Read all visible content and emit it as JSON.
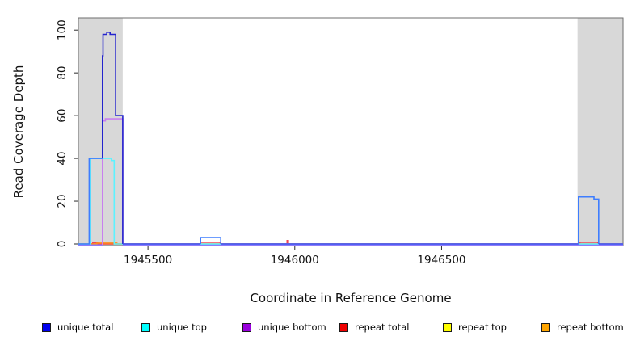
{
  "figure": {
    "background": "#ffffff",
    "shade_color": "#d8d8d8",
    "box_color": "#6e6e6e",
    "tick_color": "#2a2a2a",
    "text_color": "#111111"
  },
  "chart_data": {
    "type": "line",
    "title": "",
    "xlabel": "Coordinate in Reference Genome",
    "ylabel": "Read Coverage Depth",
    "xlim": [
      1945263,
      1947118
    ],
    "ylim": [
      0,
      100
    ],
    "xticks": [
      1945500,
      1946000,
      1946500
    ],
    "yticks": [
      0,
      20,
      40,
      60,
      80,
      100
    ],
    "grid": false,
    "legend_position": "bottom",
    "shaded_regions": [
      {
        "from": 1945263,
        "to": 1945414
      },
      {
        "from": 1946963,
        "to": 1947118
      }
    ],
    "series": [
      {
        "name": "repeat top",
        "color": "#f5f500",
        "dy": 0,
        "parts": [
          {
            "points": [
              [
                1945263,
                0
              ],
              [
                1947118,
                0
              ]
            ]
          }
        ]
      },
      {
        "name": "repeat total",
        "color": "#f04455",
        "dy": 0,
        "parts": [
          {
            "points": [
              [
                1945263,
                0
              ],
              [
                1945312,
                0
              ],
              [
                1945312,
                0.6
              ],
              [
                1945328,
                0.6
              ],
              [
                1945328,
                0
              ],
              [
                1945679,
                0
              ],
              [
                1945679,
                0.8
              ],
              [
                1945746,
                0.8
              ],
              [
                1945746,
                0
              ],
              [
                1945974,
                0
              ],
              [
                1945974,
                1.6
              ],
              [
                1945978,
                1.6
              ],
              [
                1945978,
                0
              ],
              [
                1946971,
                0
              ],
              [
                1946971,
                0.8
              ],
              [
                1947032,
                0.8
              ],
              [
                1947032,
                0
              ],
              [
                1947118,
                0
              ]
            ]
          }
        ]
      },
      {
        "name": "repeat bottom",
        "color": "#ff8c1a",
        "dy": 0,
        "parts": [
          {
            "points": [
              [
                1945263,
                0
              ],
              [
                1945326,
                0
              ],
              [
                1945326,
                0.4
              ],
              [
                1945394,
                0.4
              ],
              [
                1945394,
                0
              ],
              [
                1947118,
                0
              ]
            ]
          }
        ]
      },
      {
        "name": "unique bottom",
        "color": "#8f7bf8",
        "dy": 1.3,
        "parts": [
          {
            "points": [
              [
                1945263,
                0
              ],
              [
                1945345,
                0
              ]
            ]
          },
          {
            "color": "#c77fef",
            "points": [
              [
                1945345,
                0
              ],
              [
                1945345,
                58
              ],
              [
                1945355,
                58
              ],
              [
                1945355,
                59
              ],
              [
                1945414,
                59
              ],
              [
                1945414,
                0
              ]
            ]
          },
          {
            "points": [
              [
                1945414,
                0
              ],
              [
                1947118,
                0
              ]
            ]
          }
        ]
      },
      {
        "name": "unique top",
        "color": "#5cf2ff",
        "dy": 0,
        "parts": [
          {
            "points": [
              [
                1945263,
                0
              ],
              [
                1945302,
                0
              ],
              [
                1945302,
                40
              ],
              [
                1945375,
                40
              ],
              [
                1945375,
                39
              ],
              [
                1945385,
                39
              ],
              [
                1945385,
                0
              ],
              [
                1947118,
                0
              ]
            ]
          }
        ]
      },
      {
        "name": "unique total",
        "color": "#4545f2",
        "dy": 0,
        "parts": [
          {
            "color": "#3e7dfe",
            "points": [
              [
                1945263,
                0
              ],
              [
                1945300,
                0
              ],
              [
                1945300,
                40
              ],
              [
                1945345,
                40
              ]
            ]
          },
          {
            "color": "#2424ce",
            "points": [
              [
                1945345,
                40
              ],
              [
                1945345,
                88
              ],
              [
                1945347,
                88
              ],
              [
                1945347,
                98
              ],
              [
                1945360,
                98
              ],
              [
                1945360,
                99
              ],
              [
                1945371,
                99
              ],
              [
                1945371,
                98
              ],
              [
                1945390,
                98
              ],
              [
                1945390,
                60
              ],
              [
                1945414,
                60
              ],
              [
                1945414,
                0
              ]
            ]
          },
          {
            "points": [
              [
                1945414,
                0
              ],
              [
                1945679,
                0
              ]
            ]
          },
          {
            "color": "#3e7dfe",
            "points": [
              [
                1945679,
                0
              ],
              [
                1945679,
                3
              ],
              [
                1945748,
                3
              ],
              [
                1945748,
                0
              ]
            ]
          },
          {
            "points": [
              [
                1945748,
                0
              ],
              [
                1946966,
                0
              ]
            ]
          },
          {
            "color": "#3e7dfe",
            "points": [
              [
                1946966,
                0
              ],
              [
                1946966,
                22
              ],
              [
                1947019,
                22
              ],
              [
                1947019,
                21
              ],
              [
                1947035,
                21
              ],
              [
                1947035,
                0
              ]
            ]
          },
          {
            "points": [
              [
                1947035,
                0
              ],
              [
                1947118,
                0
              ]
            ]
          }
        ]
      }
    ]
  },
  "legend": {
    "items": [
      {
        "label": "unique total",
        "color": "#0000ee"
      },
      {
        "label": "unique top",
        "color": "#00ffff"
      },
      {
        "label": "unique bottom",
        "color": "#9900dd"
      },
      {
        "label": "repeat total",
        "color": "#ee0000"
      },
      {
        "label": "repeat top",
        "color": "#ffff00"
      },
      {
        "label": "repeat bottom",
        "color": "#ffa500"
      }
    ]
  }
}
